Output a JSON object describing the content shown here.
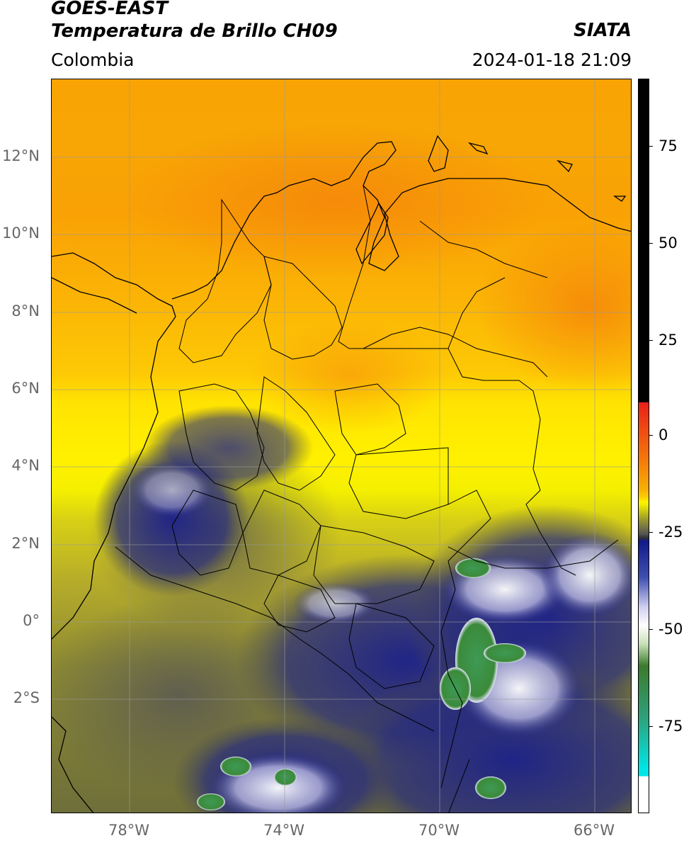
{
  "header": {
    "satellite": "GOES-EAST",
    "product": "Temperatura de Brillo CH09",
    "region": "Colombia",
    "source": "SIATA",
    "datetime": "2024-01-18 21:09"
  },
  "map": {
    "lat_labels": [
      "12°N",
      "10°N",
      "8°N",
      "6°N",
      "4°N",
      "2°N",
      "0°",
      "2°S"
    ],
    "lon_labels": [
      "78°W",
      "74°W",
      "70°W",
      "66°W"
    ],
    "extent_lon": [
      -80,
      -65
    ],
    "extent_lat": [
      -4.5,
      14.5
    ]
  },
  "colorbar": {
    "ticks": [
      "75",
      "50",
      "25",
      "0",
      "-25",
      "-50",
      "-75"
    ],
    "tick_values": [
      75,
      50,
      25,
      0,
      -25,
      -50,
      -75
    ],
    "range": [
      -95,
      90
    ],
    "colors": {
      "black": "#000000",
      "red": "#e8211a",
      "orange": "#f79a05",
      "yellow": "#ffe900",
      "olive": "#7a7a2a",
      "gray": "#4a4a4a",
      "navy": "#1b1f8a",
      "white": "#ffffff",
      "green": "#3e8a3a",
      "teal": "#3cc7b0",
      "cyan": "#00e5e5"
    }
  }
}
